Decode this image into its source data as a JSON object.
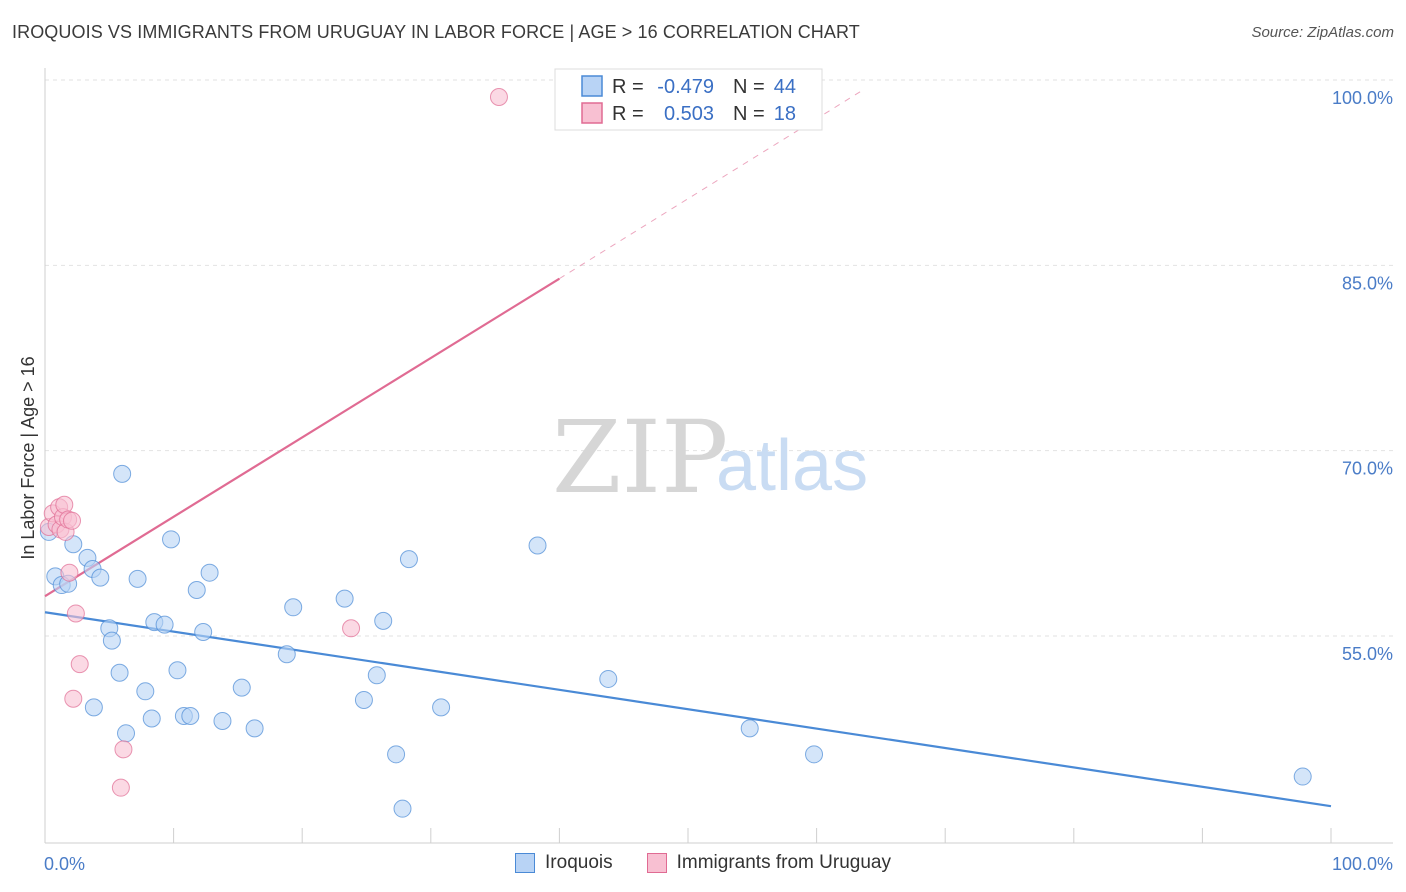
{
  "header": {
    "title": "IROQUOIS VS IMMIGRANTS FROM URUGUAY IN LABOR FORCE | AGE > 16 CORRELATION CHART",
    "source": "Source: ZipAtlas.com"
  },
  "watermark": {
    "zip": "ZIP",
    "atlas": "atlas"
  },
  "legend_box": {
    "rows": [
      {
        "r_label": "R =",
        "r_value": "-0.479",
        "n_label": "N =",
        "n_value": "44",
        "color": "#b8d3f5"
      },
      {
        "r_label": "R =",
        "r_value": "0.503",
        "n_label": "N =",
        "n_value": "18",
        "color": "#f8c0d2"
      }
    ]
  },
  "chart_data": {
    "type": "scatter",
    "title": "IROQUOIS VS IMMIGRANTS FROM URUGUAY IN LABOR FORCE | AGE > 16 CORRELATION CHART",
    "xlabel": "",
    "ylabel": "In Labor Force | Age > 16",
    "xlim": [
      0,
      100
    ],
    "ylim": [
      41,
      102
    ],
    "x_tick_labels": [
      "0.0%",
      "100.0%"
    ],
    "y_ticks": [
      100,
      85,
      70,
      55
    ],
    "y_tick_labels": [
      "100.0%",
      "85.0%",
      "70.0%",
      "55.0%"
    ],
    "grid": "horizontal dashed",
    "legend_placement": "top-center and bottom",
    "series": [
      {
        "name": "Iroquois",
        "color": "#4a8ad6",
        "fill": "#b8d3f5",
        "trend": {
          "x": [
            0,
            100
          ],
          "y": [
            58.3,
            42.6
          ]
        },
        "points": [
          [
            0.3,
            64.8
          ],
          [
            0.8,
            61.2
          ],
          [
            1.3,
            60.5
          ],
          [
            1.8,
            60.6
          ],
          [
            2.2,
            63.8
          ],
          [
            3.3,
            62.7
          ],
          [
            3.7,
            61.8
          ],
          [
            4.3,
            61.1
          ],
          [
            3.8,
            50.6
          ],
          [
            5.0,
            57.0
          ],
          [
            5.2,
            56.0
          ],
          [
            5.8,
            53.4
          ],
          [
            6.3,
            48.5
          ],
          [
            6.0,
            69.5
          ],
          [
            7.2,
            61.0
          ],
          [
            7.8,
            51.9
          ],
          [
            8.3,
            49.7
          ],
          [
            8.5,
            57.5
          ],
          [
            9.3,
            57.3
          ],
          [
            9.8,
            64.2
          ],
          [
            10.3,
            53.6
          ],
          [
            10.8,
            49.9
          ],
          [
            11.3,
            49.9
          ],
          [
            11.8,
            60.1
          ],
          [
            12.3,
            56.7
          ],
          [
            12.8,
            61.5
          ],
          [
            13.8,
            49.5
          ],
          [
            15.3,
            52.2
          ],
          [
            16.3,
            48.9
          ],
          [
            18.8,
            54.9
          ],
          [
            19.3,
            58.7
          ],
          [
            23.3,
            59.4
          ],
          [
            24.8,
            51.2
          ],
          [
            25.8,
            53.2
          ],
          [
            26.3,
            57.6
          ],
          [
            27.3,
            46.8
          ],
          [
            27.8,
            42.4
          ],
          [
            28.3,
            62.6
          ],
          [
            30.8,
            50.6
          ],
          [
            38.3,
            63.7
          ],
          [
            43.8,
            52.9
          ],
          [
            54.8,
            48.9
          ],
          [
            59.8,
            46.8
          ],
          [
            97.8,
            45.0
          ]
        ]
      },
      {
        "name": "Immigrants from Uruguay",
        "color": "#e06b93",
        "fill": "#f8c0d2",
        "trend": {
          "x": [
            0,
            40
          ],
          "y": [
            59.6,
            85.3
          ]
        },
        "trend_extension": {
          "x": [
            40,
            63.5
          ],
          "y": [
            85.3,
            100.5
          ]
        },
        "points": [
          [
            0.3,
            65.2
          ],
          [
            0.6,
            66.3
          ],
          [
            0.9,
            65.4
          ],
          [
            1.1,
            66.8
          ],
          [
            1.2,
            65.0
          ],
          [
            1.4,
            66.0
          ],
          [
            1.5,
            67.0
          ],
          [
            1.6,
            64.8
          ],
          [
            1.8,
            65.8
          ],
          [
            2.1,
            65.7
          ],
          [
            1.9,
            61.5
          ],
          [
            2.4,
            58.2
          ],
          [
            2.7,
            54.1
          ],
          [
            2.2,
            51.3
          ],
          [
            6.1,
            47.2
          ],
          [
            5.9,
            44.1
          ],
          [
            23.8,
            57.0
          ],
          [
            35.3,
            100.0
          ]
        ]
      }
    ]
  }
}
